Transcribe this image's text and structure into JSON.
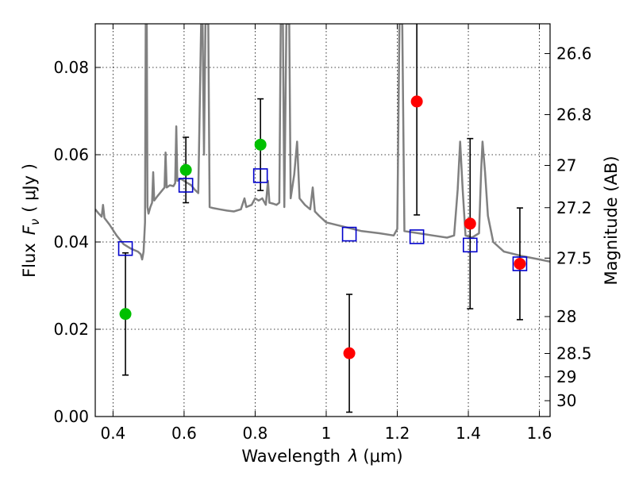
{
  "chart_data": {
    "type": "scatter",
    "xlabel": "Wavelength",
    "xlabel_symbol": "λ",
    "xlabel_unit": "(μm)",
    "ylabel": "Flux",
    "ylabel_symbol": "F",
    "ylabel_subscript": "ν",
    "ylabel_unit": "( μJy )",
    "y2label": "Magnitude (AB)",
    "xlim": [
      0.35,
      1.63
    ],
    "ylim": [
      0.0,
      0.09
    ],
    "grid": true,
    "x_ticks": [
      0.4,
      0.6,
      0.8,
      1.0,
      1.2,
      1.4,
      1.6
    ],
    "x_tick_labels": [
      "0.4",
      "0.6",
      "0.8",
      "1",
      "1.2",
      "1.4",
      "1.6"
    ],
    "y_ticks": [
      0.0,
      0.02,
      0.04,
      0.06,
      0.08
    ],
    "y_tick_labels": [
      "0.00",
      "0.02",
      "0.04",
      "0.06",
      "0.08"
    ],
    "y2_ticks": [
      {
        "label": "26.6",
        "value": 26.6
      },
      {
        "label": "26.8",
        "value": 26.8
      },
      {
        "label": "27",
        "value": 27.0
      },
      {
        "label": "27.2",
        "value": 27.2
      },
      {
        "label": "27.5",
        "value": 27.5
      },
      {
        "label": "28",
        "value": 28.0
      },
      {
        "label": "28.5",
        "value": 28.5
      },
      {
        "label": "29",
        "value": 29.0
      },
      {
        "label": "30",
        "value": 30.0
      }
    ],
    "model_spectrum": {
      "name": "model spectrum",
      "color": "#808080",
      "points": [
        [
          0.35,
          0.0475
        ],
        [
          0.36,
          0.0465
        ],
        [
          0.368,
          0.0458
        ],
        [
          0.372,
          0.0485
        ],
        [
          0.376,
          0.0455
        ],
        [
          0.39,
          0.044
        ],
        [
          0.41,
          0.0415
        ],
        [
          0.43,
          0.0395
        ],
        [
          0.45,
          0.0385
        ],
        [
          0.47,
          0.0378
        ],
        [
          0.478,
          0.0372
        ],
        [
          0.482,
          0.036
        ],
        [
          0.486,
          0.0378
        ],
        [
          0.49,
          0.0445
        ],
        [
          0.492,
          0.09
        ],
        [
          0.495,
          0.09
        ],
        [
          0.497,
          0.048
        ],
        [
          0.5,
          0.0465
        ],
        [
          0.505,
          0.048
        ],
        [
          0.51,
          0.049
        ],
        [
          0.513,
          0.056
        ],
        [
          0.516,
          0.0495
        ],
        [
          0.525,
          0.0505
        ],
        [
          0.535,
          0.0515
        ],
        [
          0.545,
          0.0525
        ],
        [
          0.548,
          0.0605
        ],
        [
          0.551,
          0.0525
        ],
        [
          0.56,
          0.053
        ],
        [
          0.57,
          0.0528
        ],
        [
          0.575,
          0.0535
        ],
        [
          0.578,
          0.0665
        ],
        [
          0.581,
          0.054
        ],
        [
          0.59,
          0.0545
        ],
        [
          0.6,
          0.054
        ],
        [
          0.61,
          0.0535
        ],
        [
          0.62,
          0.053
        ],
        [
          0.63,
          0.052
        ],
        [
          0.64,
          0.0512
        ],
        [
          0.648,
          0.09
        ],
        [
          0.652,
          0.09
        ],
        [
          0.656,
          0.06
        ],
        [
          0.66,
          0.09
        ],
        [
          0.664,
          0.09
        ],
        [
          0.668,
          0.09
        ],
        [
          0.672,
          0.048
        ],
        [
          0.68,
          0.0478
        ],
        [
          0.7,
          0.0475
        ],
        [
          0.72,
          0.0472
        ],
        [
          0.74,
          0.047
        ],
        [
          0.76,
          0.0475
        ],
        [
          0.77,
          0.05
        ],
        [
          0.775,
          0.048
        ],
        [
          0.79,
          0.0485
        ],
        [
          0.8,
          0.05
        ],
        [
          0.81,
          0.0495
        ],
        [
          0.82,
          0.05
        ],
        [
          0.83,
          0.0485
        ],
        [
          0.836,
          0.054
        ],
        [
          0.84,
          0.049
        ],
        [
          0.85,
          0.0488
        ],
        [
          0.86,
          0.0485
        ],
        [
          0.868,
          0.049
        ],
        [
          0.872,
          0.09
        ],
        [
          0.878,
          0.09
        ],
        [
          0.882,
          0.048
        ],
        [
          0.888,
          0.09
        ],
        [
          0.896,
          0.09
        ],
        [
          0.9,
          0.05
        ],
        [
          0.91,
          0.0555
        ],
        [
          0.918,
          0.063
        ],
        [
          0.925,
          0.05
        ],
        [
          0.94,
          0.0485
        ],
        [
          0.955,
          0.0475
        ],
        [
          0.962,
          0.0525
        ],
        [
          0.968,
          0.047
        ],
        [
          0.98,
          0.046
        ],
        [
          1.0,
          0.0445
        ],
        [
          1.05,
          0.0435
        ],
        [
          1.1,
          0.0425
        ],
        [
          1.15,
          0.042
        ],
        [
          1.19,
          0.0415
        ],
        [
          1.2,
          0.043
        ],
        [
          1.206,
          0.09
        ],
        [
          1.214,
          0.09
        ],
        [
          1.22,
          0.0425
        ],
        [
          1.26,
          0.042
        ],
        [
          1.3,
          0.0415
        ],
        [
          1.34,
          0.041
        ],
        [
          1.36,
          0.0415
        ],
        [
          1.37,
          0.052
        ],
        [
          1.377,
          0.063
        ],
        [
          1.384,
          0.052
        ],
        [
          1.392,
          0.0415
        ],
        [
          1.41,
          0.041
        ],
        [
          1.43,
          0.042
        ],
        [
          1.436,
          0.0565
        ],
        [
          1.44,
          0.063
        ],
        [
          1.447,
          0.056
        ],
        [
          1.455,
          0.046
        ],
        [
          1.47,
          0.04
        ],
        [
          1.5,
          0.0378
        ],
        [
          1.55,
          0.0368
        ],
        [
          1.6,
          0.036
        ],
        [
          1.63,
          0.0355
        ]
      ]
    },
    "series": [
      {
        "name": "observed (green)",
        "color": "#00c000",
        "marker": "circle",
        "points": [
          {
            "x": 0.435,
            "y": 0.0235,
            "err": 0.014
          },
          {
            "x": 0.605,
            "y": 0.0565,
            "err": 0.0075
          },
          {
            "x": 0.815,
            "y": 0.0623,
            "err": 0.0105
          }
        ]
      },
      {
        "name": "observed (red)",
        "color": "#ff0000",
        "marker": "circle",
        "points": [
          {
            "x": 1.065,
            "y": 0.0145,
            "err": 0.0135
          },
          {
            "x": 1.255,
            "y": 0.0722,
            "err": 0.026
          },
          {
            "x": 1.405,
            "y": 0.0442,
            "err": 0.0195
          },
          {
            "x": 1.545,
            "y": 0.035,
            "err": 0.0128
          }
        ]
      },
      {
        "name": "model photometry",
        "color": "#0000cc",
        "marker": "open-square",
        "points": [
          {
            "x": 0.435,
            "y": 0.0385
          },
          {
            "x": 0.605,
            "y": 0.053
          },
          {
            "x": 0.815,
            "y": 0.0552
          },
          {
            "x": 1.065,
            "y": 0.0418
          },
          {
            "x": 1.255,
            "y": 0.0412
          },
          {
            "x": 1.405,
            "y": 0.0393
          },
          {
            "x": 1.545,
            "y": 0.035
          }
        ]
      }
    ]
  }
}
